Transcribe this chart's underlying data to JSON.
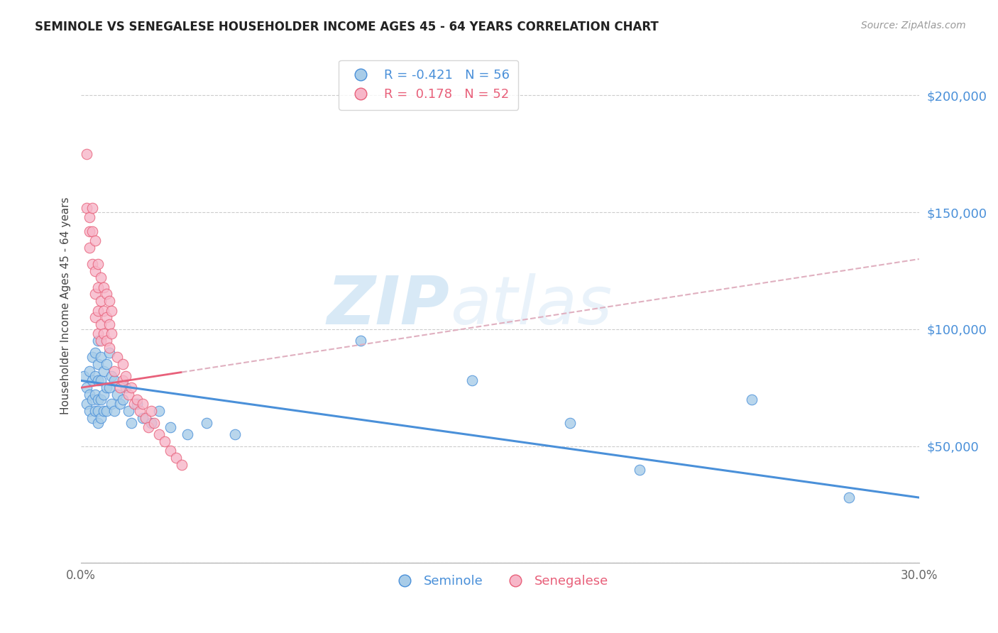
{
  "title": "SEMINOLE VS SENEGALESE HOUSEHOLDER INCOME AGES 45 - 64 YEARS CORRELATION CHART",
  "source": "Source: ZipAtlas.com",
  "ylabel": "Householder Income Ages 45 - 64 years",
  "xlim": [
    0.0,
    0.3
  ],
  "ylim": [
    0,
    220000
  ],
  "yticks": [
    0,
    50000,
    100000,
    150000,
    200000
  ],
  "xticks": [
    0.0,
    0.3
  ],
  "xtick_labels": [
    "0.0%",
    "30.0%"
  ],
  "watermark_zip": "ZIP",
  "watermark_atlas": "atlas",
  "seminole_color": "#a8cce8",
  "senegalese_color": "#f7b6c8",
  "trend_seminole_color": "#4a90d9",
  "trend_senegalese_color": "#e8607a",
  "trend_dashed_color": "#e0b0c0",
  "R_seminole": -0.421,
  "N_seminole": 56,
  "R_senegalese": 0.178,
  "N_senegalese": 52,
  "seminole_x": [
    0.001,
    0.002,
    0.002,
    0.003,
    0.003,
    0.003,
    0.004,
    0.004,
    0.004,
    0.004,
    0.005,
    0.005,
    0.005,
    0.005,
    0.006,
    0.006,
    0.006,
    0.006,
    0.006,
    0.006,
    0.007,
    0.007,
    0.007,
    0.007,
    0.008,
    0.008,
    0.008,
    0.009,
    0.009,
    0.009,
    0.01,
    0.01,
    0.011,
    0.011,
    0.012,
    0.012,
    0.013,
    0.014,
    0.015,
    0.016,
    0.017,
    0.018,
    0.02,
    0.022,
    0.025,
    0.028,
    0.032,
    0.038,
    0.045,
    0.055,
    0.1,
    0.14,
    0.175,
    0.2,
    0.24,
    0.275
  ],
  "seminole_y": [
    80000,
    75000,
    68000,
    82000,
    72000,
    65000,
    88000,
    78000,
    70000,
    62000,
    90000,
    80000,
    72000,
    65000,
    95000,
    85000,
    78000,
    70000,
    65000,
    60000,
    88000,
    78000,
    70000,
    62000,
    82000,
    72000,
    65000,
    85000,
    75000,
    65000,
    90000,
    75000,
    80000,
    68000,
    78000,
    65000,
    72000,
    68000,
    70000,
    75000,
    65000,
    60000,
    68000,
    62000,
    60000,
    65000,
    58000,
    55000,
    60000,
    55000,
    95000,
    78000,
    60000,
    40000,
    70000,
    28000
  ],
  "senegalese_x": [
    0.002,
    0.002,
    0.003,
    0.003,
    0.003,
    0.004,
    0.004,
    0.004,
    0.005,
    0.005,
    0.005,
    0.005,
    0.006,
    0.006,
    0.006,
    0.006,
    0.007,
    0.007,
    0.007,
    0.007,
    0.008,
    0.008,
    0.008,
    0.009,
    0.009,
    0.009,
    0.01,
    0.01,
    0.01,
    0.011,
    0.011,
    0.012,
    0.013,
    0.014,
    0.015,
    0.015,
    0.016,
    0.017,
    0.018,
    0.019,
    0.02,
    0.021,
    0.022,
    0.023,
    0.024,
    0.025,
    0.026,
    0.028,
    0.03,
    0.032,
    0.034,
    0.036
  ],
  "senegalese_y": [
    175000,
    152000,
    148000,
    142000,
    135000,
    152000,
    142000,
    128000,
    138000,
    125000,
    115000,
    105000,
    128000,
    118000,
    108000,
    98000,
    122000,
    112000,
    102000,
    95000,
    118000,
    108000,
    98000,
    115000,
    105000,
    95000,
    112000,
    102000,
    92000,
    108000,
    98000,
    82000,
    88000,
    75000,
    85000,
    78000,
    80000,
    72000,
    75000,
    68000,
    70000,
    65000,
    68000,
    62000,
    58000,
    65000,
    60000,
    55000,
    52000,
    48000,
    45000,
    42000
  ],
  "sem_trend_x0": 0.0,
  "sem_trend_y0": 78000,
  "sem_trend_x1": 0.3,
  "sem_trend_y1": 28000,
  "sen_trend_x0": 0.0,
  "sen_trend_y0": 75000,
  "sen_trend_x1": 0.3,
  "sen_trend_y1": 130000,
  "sen_solid_xend": 0.036
}
